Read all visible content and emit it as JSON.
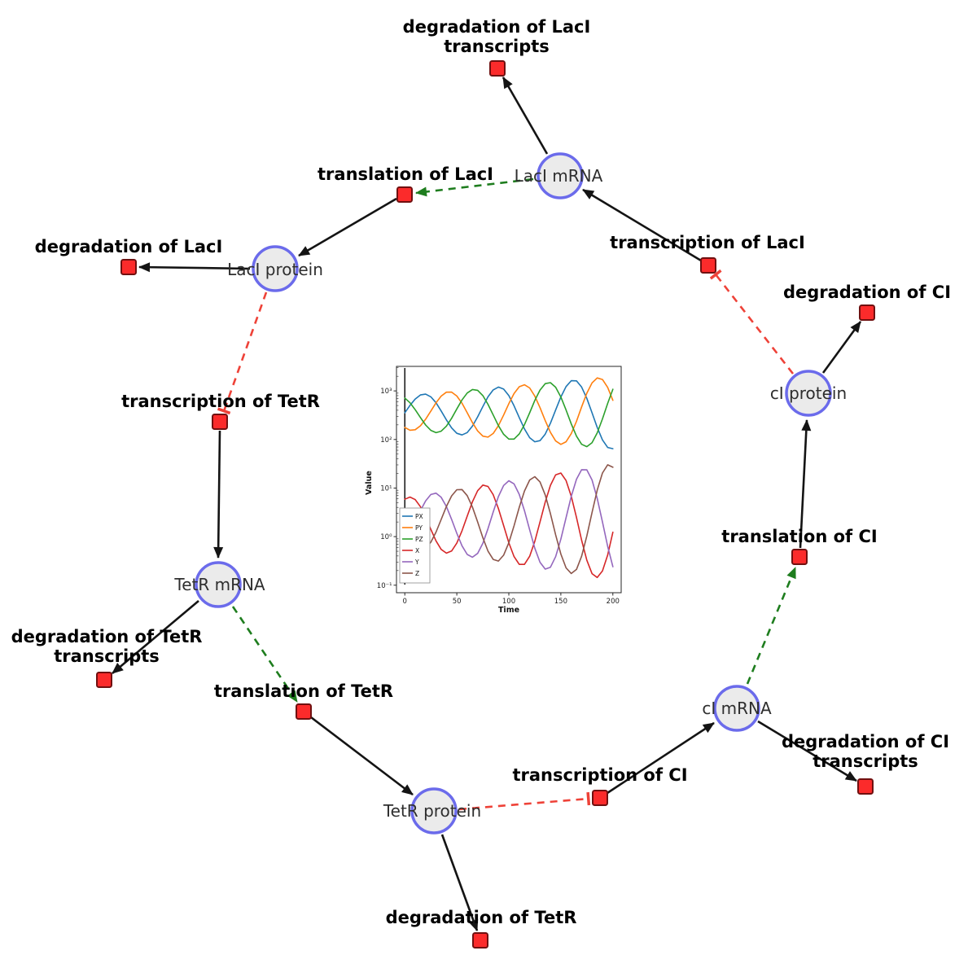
{
  "diagram": {
    "species": [
      {
        "id": "laci_mrna",
        "label": "LacI mRNA"
      },
      {
        "id": "laci_protein",
        "label": "LacI protein"
      },
      {
        "id": "tetr_mrna",
        "label": "TetR mRNA"
      },
      {
        "id": "tetr_protein",
        "label": "TetR protein"
      },
      {
        "id": "ci_mrna",
        "label": "cI mRNA"
      },
      {
        "id": "ci_protein",
        "label": "cI protein"
      }
    ],
    "reactions": [
      {
        "id": "deg_laci_tx",
        "lines": [
          "degradation of LacI",
          "transcripts"
        ]
      },
      {
        "id": "trl_laci",
        "lines": [
          "translation of LacI"
        ]
      },
      {
        "id": "deg_laci",
        "lines": [
          "degradation of LacI"
        ]
      },
      {
        "id": "txn_laci",
        "lines": [
          "transcription of LacI"
        ]
      },
      {
        "id": "deg_ci",
        "lines": [
          "degradation of CI"
        ]
      },
      {
        "id": "txn_tetr",
        "lines": [
          "transcription of TetR"
        ]
      },
      {
        "id": "deg_tetr_tx",
        "lines": [
          "degradation of TetR",
          "transcripts"
        ]
      },
      {
        "id": "trl_tetr",
        "lines": [
          "translation of TetR"
        ]
      },
      {
        "id": "deg_tetr",
        "lines": [
          "degradation of TetR"
        ]
      },
      {
        "id": "txn_ci",
        "lines": [
          "transcription of CI"
        ]
      },
      {
        "id": "deg_ci_tx",
        "lines": [
          "degradation of CI",
          "transcripts"
        ]
      },
      {
        "id": "trl_ci",
        "lines": [
          "translation of CI"
        ]
      }
    ],
    "edges": [
      {
        "from": "txn_laci",
        "to": "laci_mrna",
        "type": "product"
      },
      {
        "from": "laci_mrna",
        "to": "trl_laci",
        "type": "modifier"
      },
      {
        "from": "trl_laci",
        "to": "laci_protein",
        "type": "product"
      },
      {
        "from": "laci_protein",
        "to": "txn_tetr",
        "type": "inhibition"
      },
      {
        "from": "txn_tetr",
        "to": "tetr_mrna",
        "type": "product"
      },
      {
        "from": "tetr_mrna",
        "to": "trl_tetr",
        "type": "modifier"
      },
      {
        "from": "trl_tetr",
        "to": "tetr_protein",
        "type": "product"
      },
      {
        "from": "tetr_protein",
        "to": "txn_ci",
        "type": "inhibition"
      },
      {
        "from": "txn_ci",
        "to": "ci_mrna",
        "type": "product"
      },
      {
        "from": "ci_mrna",
        "to": "trl_ci",
        "type": "modifier"
      },
      {
        "from": "trl_ci",
        "to": "ci_protein",
        "type": "product"
      },
      {
        "from": "ci_protein",
        "to": "txn_laci",
        "type": "inhibition"
      },
      {
        "from": "laci_mrna",
        "to": "deg_laci_tx",
        "type": "reactant"
      },
      {
        "from": "laci_protein",
        "to": "deg_laci",
        "type": "reactant"
      },
      {
        "from": "tetr_mrna",
        "to": "deg_tetr_tx",
        "type": "reactant"
      },
      {
        "from": "tetr_protein",
        "to": "deg_tetr",
        "type": "reactant"
      },
      {
        "from": "ci_mrna",
        "to": "deg_ci_tx",
        "type": "reactant"
      },
      {
        "from": "ci_protein",
        "to": "deg_ci",
        "type": "reactant"
      }
    ],
    "colors": {
      "species_fill": "#ebebeb",
      "species_border": "#6b6beb",
      "reaction_fill": "#fb2b2b",
      "reaction_border": "#701010",
      "edge": "#141414",
      "modifier_edge": "#1e7d1e",
      "inhibition_edge": "#ee4238"
    }
  },
  "chart_data": {
    "type": "line",
    "title": "",
    "xlabel": "Time",
    "ylabel": "Value",
    "y_scale": "log",
    "grid": false,
    "legend_position": "lower left",
    "xlim": [
      -8,
      208
    ],
    "ylim": [
      0.07,
      3200
    ],
    "x_ticks": [
      0,
      50,
      100,
      150,
      200
    ],
    "y_tick_values": [
      0.1,
      1,
      10,
      100,
      1000
    ],
    "y_tick_labels": [
      "10⁻¹",
      "10⁰",
      "10¹",
      "10²",
      "10³"
    ],
    "transient_line_x": 0,
    "x": [
      0,
      5,
      10,
      15,
      20,
      25,
      30,
      35,
      40,
      45,
      50,
      55,
      60,
      65,
      70,
      75,
      80,
      85,
      90,
      95,
      100,
      105,
      110,
      115,
      120,
      125,
      130,
      135,
      140,
      145,
      150,
      155,
      160,
      165,
      170,
      175,
      180,
      185,
      190,
      195,
      200
    ],
    "series": [
      {
        "name": "PX",
        "color": "#1f77b4",
        "values": [
          355,
          504,
          681,
          826,
          859,
          755,
          569,
          386,
          253,
          173,
          134,
          124,
          139,
          188,
          292,
          478,
          755,
          1050,
          1200,
          1090,
          801,
          495,
          282,
          165,
          109,
          89.6,
          94.8,
          129,
          216,
          404,
          750,
          1230,
          1620,
          1610,
          1200,
          702,
          355,
          176,
          98,
          68.4,
          64.7
        ]
      },
      {
        "name": "PY",
        "color": "#ff7f0e",
        "values": [
          177,
          155,
          159,
          191,
          261,
          385,
          569,
          783,
          941,
          944,
          785,
          556,
          355,
          222,
          150,
          117,
          112,
          133,
          193,
          318,
          547,
          883,
          1220,
          1340,
          1150,
          783,
          453,
          245,
          140,
          93.3,
          79.4,
          89.6,
          132,
          236,
          468,
          895,
          1460,
          1850,
          1720,
          1180,
          641
        ]
      },
      {
        "name": "PZ",
        "color": "#2ca02c",
        "values": [
          713,
          571,
          411,
          283,
          199,
          154,
          138,
          148,
          188,
          273,
          425,
          652,
          906,
          1070,
          1030,
          801,
          530,
          320,
          193,
          128,
          102,
          102,
          130,
          202,
          355,
          637,
          1040,
          1410,
          1480,
          1190,
          750,
          405,
          209,
          117,
          79.6,
          71.3,
          86.1,
          137,
          265,
          552,
          1080
        ]
      },
      {
        "name": "X",
        "color": "#d62728",
        "values": [
          5.89,
          6.53,
          5.79,
          4.14,
          2.51,
          1.41,
          0.815,
          0.545,
          0.457,
          0.506,
          0.734,
          1.32,
          2.65,
          5.22,
          8.81,
          11.5,
          10.8,
          7.31,
          3.79,
          1.69,
          0.75,
          0.389,
          0.268,
          0.268,
          0.394,
          0.8,
          2.0,
          5.14,
          11.4,
          18.7,
          20.4,
          14.3,
          6.76,
          2.48,
          0.843,
          0.326,
          0.173,
          0.144,
          0.196,
          0.418,
          1.23
        ]
      },
      {
        "name": "Y",
        "color": "#9467bd",
        "values": [
          0.826,
          1.21,
          2.0,
          3.42,
          5.45,
          7.37,
          7.87,
          6.45,
          4.17,
          2.27,
          1.17,
          0.646,
          0.429,
          0.376,
          0.452,
          0.728,
          1.46,
          3.21,
          6.67,
          11.3,
          14.1,
          12.2,
          7.4,
          3.42,
          1.38,
          0.578,
          0.297,
          0.214,
          0.234,
          0.387,
          0.889,
          2.46,
          6.76,
          15.2,
          23.9,
          23.7,
          14.7,
          6.1,
          2.0,
          0.631,
          0.24
        ]
      },
      {
        "name": "Z",
        "color": "#8c564b",
        "values": [
          1.63,
          1.01,
          0.687,
          0.562,
          0.581,
          0.767,
          1.24,
          2.26,
          4.17,
          6.89,
          9.23,
          9.31,
          6.98,
          4.06,
          2.0,
          0.949,
          0.504,
          0.339,
          0.314,
          0.415,
          0.75,
          1.67,
          4.01,
          8.67,
          14.6,
          17.1,
          13.4,
          7.21,
          2.97,
          1.09,
          0.438,
          0.227,
          0.174,
          0.211,
          0.394,
          1.03,
          3.14,
          9.1,
          20.4,
          30.1,
          26.8
        ]
      }
    ]
  }
}
